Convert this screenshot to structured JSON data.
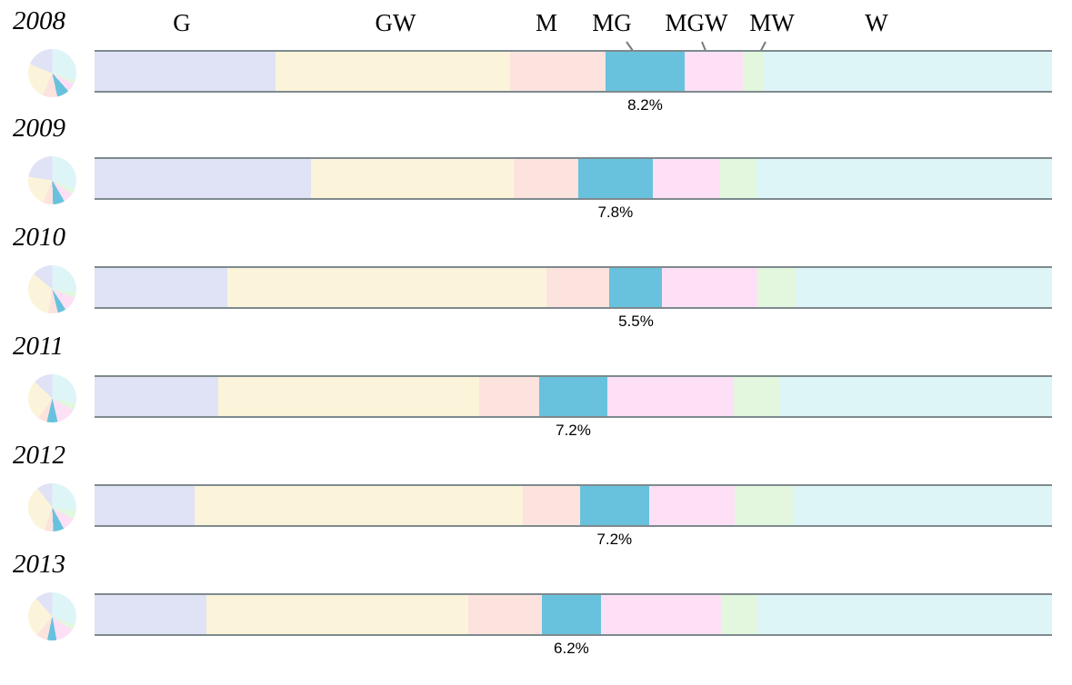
{
  "chart_data": {
    "type": "bar",
    "orientation": "horizontal-stacked",
    "title": "",
    "categories": [
      "G",
      "GW",
      "M",
      "MG",
      "MGW",
      "MW",
      "W"
    ],
    "colors": {
      "G": "#e0e2f6",
      "GW": "#fbf4da",
      "M": "#fce3dd",
      "MG": "#68c2dd",
      "MGW": "#fde0f6",
      "MW": "#e2f7de",
      "W": "#def5f8"
    },
    "border_color": "#7e8a8e",
    "leader_line_color": "#7a7a7a",
    "highlighted_category": "MG",
    "legend_position": "top, above first (2008) bar; MG, MGW, MW connected with leader lines",
    "grid": false,
    "xlim": [
      0,
      100
    ],
    "years": [
      {
        "year": "2008",
        "values": [
          18.9,
          24.5,
          10.0,
          8.2,
          6.1,
          2.2,
          30.1
        ],
        "mg_label": "8.2%"
      },
      {
        "year": "2009",
        "values": [
          22.6,
          21.2,
          6.7,
          7.8,
          7.0,
          3.8,
          30.9
        ],
        "mg_label": "7.8%"
      },
      {
        "year": "2010",
        "values": [
          13.9,
          33.3,
          6.6,
          5.5,
          9.9,
          4.0,
          26.8
        ],
        "mg_label": "5.5%"
      },
      {
        "year": "2011",
        "values": [
          12.9,
          27.3,
          6.2,
          7.2,
          13.2,
          4.7,
          28.5
        ],
        "mg_label": "7.2%"
      },
      {
        "year": "2012",
        "values": [
          10.4,
          34.3,
          6.0,
          7.2,
          9.0,
          6.1,
          27.0
        ],
        "mg_label": "7.2%"
      },
      {
        "year": "2013",
        "values": [
          11.7,
          27.3,
          7.7,
          6.2,
          12.5,
          3.8,
          30.8
        ],
        "mg_label": "6.2%"
      }
    ],
    "pie_note": "each year has a small pie chart of the same shares, drawn counterclockwise from top in category order"
  }
}
